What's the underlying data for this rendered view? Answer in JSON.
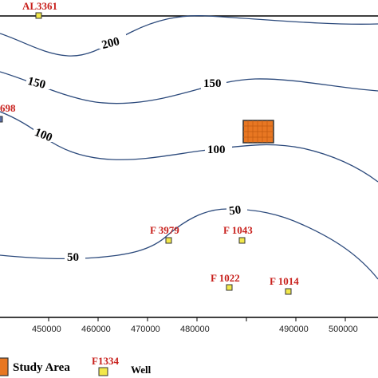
{
  "map": {
    "contours": [
      {
        "value": "200",
        "label": "200"
      },
      {
        "value": "150",
        "label": "150"
      },
      {
        "value": "100",
        "label": "100"
      },
      {
        "value": "50",
        "label": "50"
      }
    ],
    "wells": [
      {
        "id": "AL3361",
        "label": "AL3361"
      },
      {
        "id": "698",
        "label": "698"
      },
      {
        "id": "F3979",
        "label": "F 3979"
      },
      {
        "id": "F1043",
        "label": "F 1043"
      },
      {
        "id": "F1022",
        "label": "F 1022"
      },
      {
        "id": "F1014",
        "label": "F 1014"
      }
    ],
    "x_axis": {
      "ticks": [
        "450000",
        "460000",
        "470000",
        "480000",
        "490000",
        "500000"
      ]
    },
    "legend": {
      "study_area_label": "Study Area",
      "well_label": "Well",
      "well_example_label": "F1334"
    },
    "colors": {
      "contour": "#2c4a7c",
      "well_label": "#c8201c",
      "well_marker": "#f2e84a",
      "study_area": "#e87722"
    }
  }
}
